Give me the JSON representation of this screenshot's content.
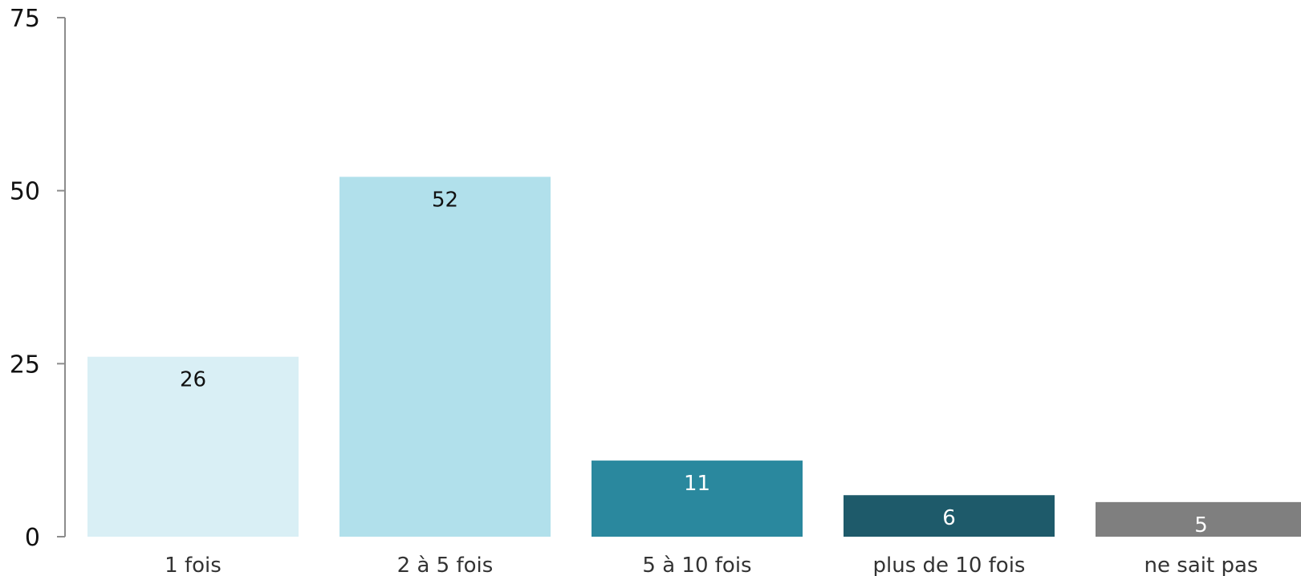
{
  "chart_data": {
    "type": "bar",
    "title": "",
    "xlabel": "",
    "ylabel": "",
    "categories": [
      "1 fois",
      "2 à 5 fois",
      "5 à 10 fois",
      "plus de 10 fois",
      "ne sait pas"
    ],
    "values": [
      26,
      52,
      11,
      6,
      5
    ],
    "data_labels": [
      "26",
      "52",
      "11",
      "6",
      "5"
    ],
    "ylim": [
      0,
      75
    ],
    "yticks": [
      0,
      25,
      50,
      75
    ],
    "ytick_labels": [
      "0",
      "25",
      "50",
      "75"
    ],
    "grid": false,
    "legend": "none",
    "bar_colors": [
      "#d9eff5",
      "#b1e0eb",
      "#2a889e",
      "#1e5a6a",
      "#7f7f7f"
    ],
    "label_colors": [
      "#111111",
      "#111111",
      "#ffffff",
      "#ffffff",
      "#ffffff"
    ]
  }
}
